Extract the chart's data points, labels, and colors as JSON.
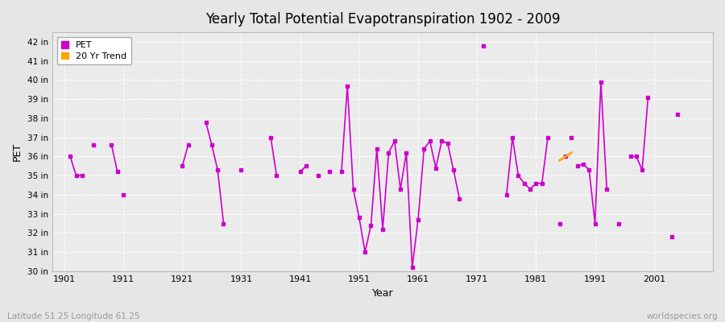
{
  "title": "Yearly Total Potential Evapotranspiration 1902 - 2009",
  "xlabel": "Year",
  "ylabel": "PET",
  "subtitle_left": "Latitude 51.25 Longitude 61.25",
  "subtitle_right": "worldspecies.org",
  "ylim": [
    30,
    42.5
  ],
  "xlim": [
    1899,
    2011
  ],
  "yticks": [
    30,
    31,
    32,
    33,
    34,
    35,
    36,
    37,
    38,
    39,
    40,
    41,
    42
  ],
  "ytick_labels": [
    "30 in",
    "31 in",
    "32 in",
    "33 in",
    "34 in",
    "35 in",
    "36 in",
    "37 in",
    "38 in",
    "39 in",
    "40 in",
    "41 in",
    "42 in"
  ],
  "xticks": [
    1901,
    1911,
    1921,
    1931,
    1941,
    1951,
    1961,
    1971,
    1981,
    1991,
    2001
  ],
  "pet_color": "#CC00CC",
  "trend_color": "#FFA500",
  "bg_color": "#E6E6E6",
  "plot_bg": "#EBEBEB",
  "grid_color": "#FFFFFF",
  "segments": [
    {
      "years": [
        1902,
        1903,
        1904
      ],
      "values": [
        36.0,
        35.0,
        35.0
      ]
    },
    {
      "years": [
        1909,
        1910
      ],
      "values": [
        36.6,
        35.2
      ]
    },
    {
      "years": [
        1921,
        1922
      ],
      "values": [
        35.5,
        36.6
      ]
    },
    {
      "years": [
        1925,
        1926,
        1927,
        1928
      ],
      "values": [
        37.8,
        36.6,
        35.3,
        32.5
      ]
    },
    {
      "years": [
        1936,
        1937
      ],
      "values": [
        37.0,
        35.0
      ]
    },
    {
      "years": [
        1941,
        1942
      ],
      "values": [
        35.2,
        35.5
      ]
    },
    {
      "years": [
        1948,
        1949,
        1950,
        1951,
        1952,
        1953,
        1954,
        1955,
        1956,
        1957,
        1958,
        1959,
        1960,
        1961,
        1962,
        1963,
        1964,
        1965,
        1966,
        1967,
        1968
      ],
      "values": [
        35.2,
        39.7,
        34.3,
        32.8,
        31.0,
        32.4,
        36.4,
        32.2,
        36.2,
        36.8,
        34.3,
        36.2,
        30.2,
        32.7,
        36.4,
        36.8,
        35.4,
        36.8,
        36.7,
        35.3,
        33.8
      ]
    },
    {
      "years": [
        1976,
        1977,
        1978,
        1979,
        1980,
        1981,
        1982,
        1983
      ],
      "values": [
        34.0,
        37.0,
        35.0,
        34.6,
        34.3,
        34.6,
        34.6,
        37.0
      ]
    },
    {
      "years": [
        1988,
        1989,
        1990,
        1991,
        1992,
        1993
      ],
      "values": [
        35.5,
        35.6,
        35.3,
        32.5,
        39.9,
        34.3
      ]
    },
    {
      "years": [
        1997,
        1998,
        1999,
        2000
      ],
      "values": [
        36.0,
        36.0,
        35.3,
        39.1
      ]
    }
  ],
  "isolated": [
    {
      "year": 1906,
      "value": 36.6
    },
    {
      "year": 1911,
      "value": 34.0
    },
    {
      "year": 1931,
      "value": 35.3
    },
    {
      "year": 1944,
      "value": 35.0
    },
    {
      "year": 1946,
      "value": 35.2
    },
    {
      "year": 1972,
      "value": 41.8
    },
    {
      "year": 1985,
      "value": 32.5
    },
    {
      "year": 1986,
      "value": 36.0
    },
    {
      "year": 1987,
      "value": 37.0
    },
    {
      "year": 1995,
      "value": 32.5
    },
    {
      "year": 2004,
      "value": 31.8
    },
    {
      "year": 2005,
      "value": 38.2
    }
  ],
  "trend_years": [
    1985,
    1987
  ],
  "trend_values": [
    35.8,
    36.2
  ],
  "legend_pet_label": "PET",
  "legend_trend_label": "20 Yr Trend"
}
